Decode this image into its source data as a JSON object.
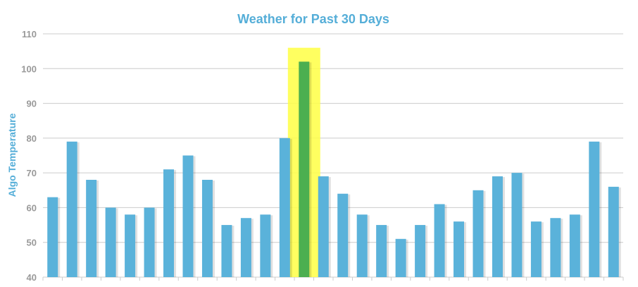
{
  "colors": {
    "accent": "#55aed8",
    "bar": "#5ab2da",
    "highlight_bar": "#4caf50",
    "highlight_band": "#ffff44",
    "grid": "#cccccc",
    "tick_text": "#999999"
  },
  "chart_data": {
    "type": "bar",
    "title": "Weather for Past 30 Days",
    "xlabel": "",
    "ylabel": "Algo Temperature",
    "ylim": [
      40,
      110
    ],
    "yticks": [
      40,
      50,
      60,
      70,
      80,
      90,
      100,
      110
    ],
    "grid": true,
    "legend": "none",
    "values": [
      63,
      79,
      68,
      60,
      58,
      60,
      71,
      75,
      68,
      55,
      57,
      58,
      80,
      102,
      69,
      64,
      58,
      55,
      51,
      55,
      61,
      56,
      65,
      69,
      70,
      56,
      57,
      58,
      79,
      66
    ],
    "highlight_index": 13,
    "highlight_band_top": 106
  }
}
